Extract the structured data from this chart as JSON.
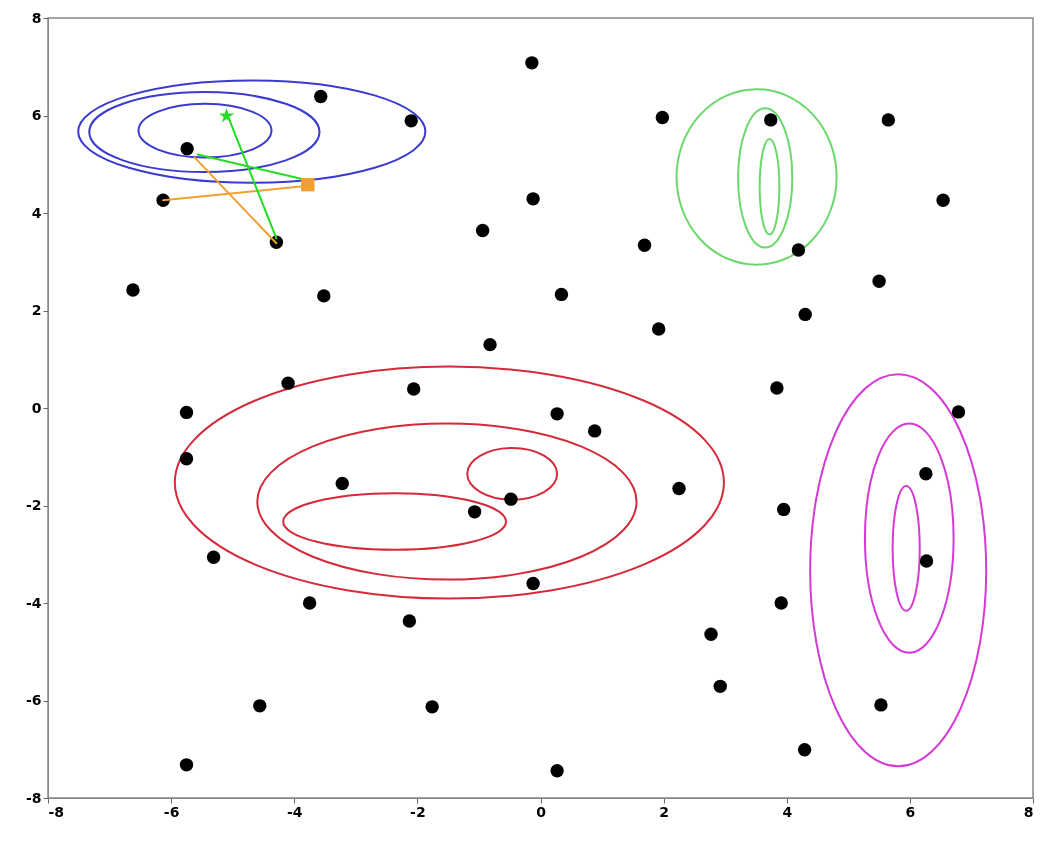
{
  "chart_data": {
    "type": "scatter",
    "xlim": [
      -8,
      8
    ],
    "ylim": [
      -8,
      8
    ],
    "xticks": [
      -8,
      -6,
      -4,
      -2,
      0,
      2,
      4,
      6,
      8
    ],
    "yticks": [
      -8,
      -6,
      -4,
      -2,
      0,
      2,
      4,
      6,
      8
    ],
    "grid": false,
    "series": [
      {
        "marker": "circle",
        "color": "#000000",
        "x": [
          -0.14,
          -3.57,
          -2.1,
          -5.74,
          -6.13,
          -4.29,
          -6.62,
          -3.52,
          -0.94,
          -0.12,
          -0.82,
          -4.1,
          -2.06,
          -5.75,
          -5.75,
          -3.22,
          -5.31,
          -3.75,
          -2.13,
          -4.56,
          -1.76,
          -5.75,
          -1.07,
          -0.48,
          -0.12,
          0.27,
          0.88,
          2.25,
          3.84,
          3.95,
          3.91,
          2.77,
          2.92,
          4.29,
          0.27,
          5.53,
          6.26,
          6.27,
          6.79,
          1.98,
          3.74,
          5.65,
          6.54,
          1.69,
          4.19,
          5.5,
          0.34,
          4.3,
          1.92
        ],
        "values": [
          7.08,
          6.39,
          5.89,
          5.32,
          4.26,
          3.4,
          2.42,
          2.3,
          3.64,
          4.29,
          1.3,
          0.51,
          0.39,
          -0.09,
          -1.04,
          -1.55,
          -3.06,
          -4.0,
          -4.37,
          -6.11,
          -6.13,
          -7.32,
          -2.13,
          -1.87,
          -3.6,
          -0.12,
          -0.47,
          -1.65,
          0.41,
          -2.08,
          -4.0,
          -4.64,
          -5.71,
          -7.01,
          -7.44,
          -6.09,
          -1.35,
          -3.14,
          -0.08,
          5.96,
          5.91,
          5.91,
          4.26,
          3.34,
          3.24,
          2.6,
          2.33,
          1.92,
          1.62
        ]
      },
      {
        "type": "line",
        "color": "#f0a030",
        "x": [
          -6.13,
          -3.78
        ],
        "values": [
          4.26,
          4.56
        ]
      },
      {
        "type": "line",
        "color": "#f0a030",
        "x": [
          -5.62,
          -4.29
        ],
        "values": [
          5.14,
          3.38
        ]
      },
      {
        "type": "line",
        "color": "#22dd22",
        "x": [
          -5.57,
          -3.75
        ],
        "values": [
          5.2,
          4.66
        ]
      },
      {
        "type": "line",
        "color": "#22dd22",
        "x": [
          -4.29,
          -5.06
        ],
        "values": [
          3.48,
          5.93
        ]
      },
      {
        "marker": "square",
        "color": "#f0a030",
        "x": [
          -3.78
        ],
        "values": [
          4.58
        ]
      },
      {
        "marker": "star",
        "color": "#22dd22",
        "x": [
          -5.1
        ],
        "values": [
          5.99
        ]
      }
    ]
  }
}
